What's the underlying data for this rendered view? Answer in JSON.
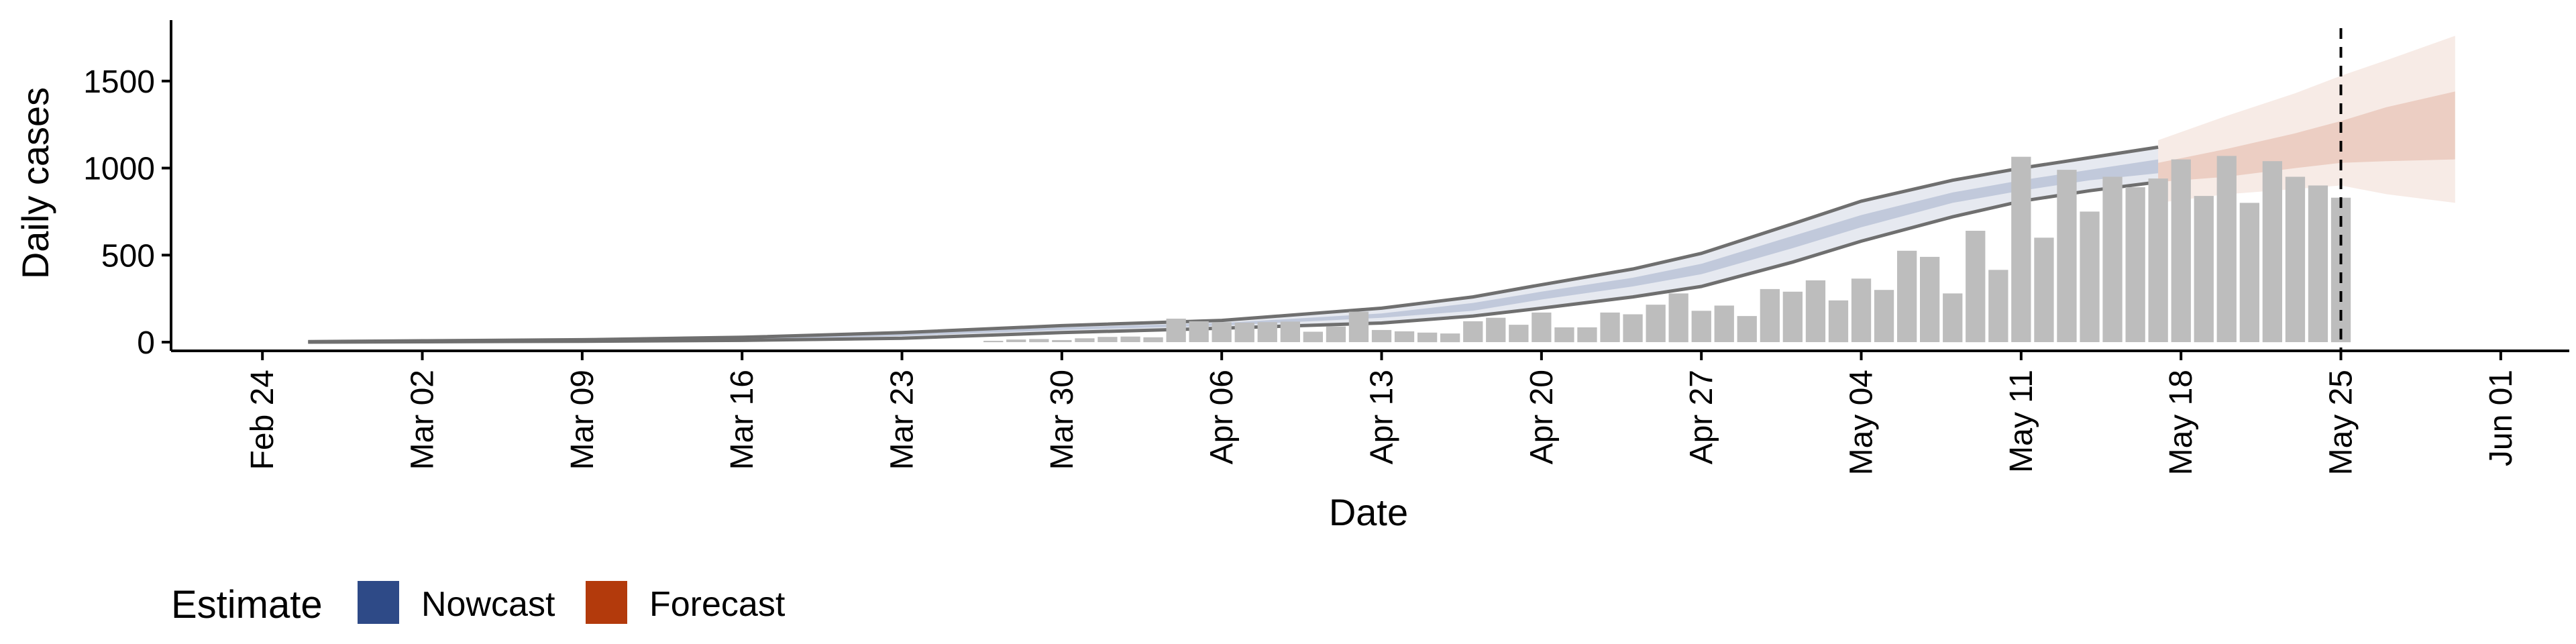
{
  "chart_data": {
    "type": "bar",
    "title": "",
    "xlabel": "Date",
    "ylabel": "Daily cases",
    "x_type": "date",
    "xlim": [
      "2020-02-20",
      "2020-06-04"
    ],
    "ylim": [
      -50,
      1850
    ],
    "y_ticks": [
      0,
      500,
      1000,
      1500
    ],
    "x_ticks": [
      {
        "date": "2020-02-24",
        "label": "Feb 24"
      },
      {
        "date": "2020-03-02",
        "label": "Mar 02"
      },
      {
        "date": "2020-03-09",
        "label": "Mar 09"
      },
      {
        "date": "2020-03-16",
        "label": "Mar 16"
      },
      {
        "date": "2020-03-23",
        "label": "Mar 23"
      },
      {
        "date": "2020-03-30",
        "label": "Mar 30"
      },
      {
        "date": "2020-04-06",
        "label": "Apr 06"
      },
      {
        "date": "2020-04-13",
        "label": "Apr 13"
      },
      {
        "date": "2020-04-20",
        "label": "Apr 20"
      },
      {
        "date": "2020-04-27",
        "label": "Apr 27"
      },
      {
        "date": "2020-05-04",
        "label": "May 04"
      },
      {
        "date": "2020-05-11",
        "label": "May 11"
      },
      {
        "date": "2020-05-18",
        "label": "May 18"
      },
      {
        "date": "2020-05-25",
        "label": "May 25"
      },
      {
        "date": "2020-06-01",
        "label": "Jun 01"
      }
    ],
    "grid": false,
    "legend": {
      "position": "bottom-left",
      "title": "Estimate",
      "entries": [
        {
          "label": "Nowcast",
          "color": "#2e4a87"
        },
        {
          "label": "Forecast",
          "color": "#b33a0c"
        }
      ]
    },
    "reference_line": {
      "date": "2020-05-25",
      "style": "dashed"
    },
    "reported_cases": {
      "color": "#bdbdbd",
      "dates": [
        "2020-03-27",
        "2020-03-28",
        "2020-03-29",
        "2020-03-30",
        "2020-03-31",
        "2020-04-01",
        "2020-04-02",
        "2020-04-03",
        "2020-04-04",
        "2020-04-05",
        "2020-04-06",
        "2020-04-07",
        "2020-04-08",
        "2020-04-09",
        "2020-04-10",
        "2020-04-11",
        "2020-04-12",
        "2020-04-13",
        "2020-04-14",
        "2020-04-15",
        "2020-04-16",
        "2020-04-17",
        "2020-04-18",
        "2020-04-19",
        "2020-04-20",
        "2020-04-21",
        "2020-04-22",
        "2020-04-23",
        "2020-04-24",
        "2020-04-25",
        "2020-04-26",
        "2020-04-27",
        "2020-04-28",
        "2020-04-29",
        "2020-04-30",
        "2020-05-01",
        "2020-05-02",
        "2020-05-03",
        "2020-05-04",
        "2020-05-05",
        "2020-05-06",
        "2020-05-07",
        "2020-05-08",
        "2020-05-09",
        "2020-05-10",
        "2020-05-11",
        "2020-05-12",
        "2020-05-13",
        "2020-05-14",
        "2020-05-15",
        "2020-05-16",
        "2020-05-17",
        "2020-05-18",
        "2020-05-19",
        "2020-05-20",
        "2020-05-21",
        "2020-05-22",
        "2020-05-23",
        "2020-05-24",
        "2020-05-25"
      ],
      "values": [
        8,
        15,
        18,
        12,
        22,
        30,
        32,
        28,
        135,
        120,
        115,
        112,
        115,
        118,
        60,
        90,
        175,
        70,
        62,
        55,
        50,
        120,
        140,
        100,
        170,
        85,
        85,
        170,
        160,
        215,
        280,
        180,
        210,
        150,
        305,
        290,
        355,
        240,
        365,
        300,
        525,
        490,
        280,
        640,
        415,
        1065,
        600,
        990,
        750,
        950,
        890,
        940,
        1050,
        840,
        1070,
        800,
        1040,
        950,
        900,
        830
      ]
    },
    "nowcast": {
      "color": "#2e4a87",
      "dates": [
        "2020-02-26",
        "2020-03-02",
        "2020-03-09",
        "2020-03-16",
        "2020-03-23",
        "2020-03-30",
        "2020-04-06",
        "2020-04-13",
        "2020-04-17",
        "2020-04-20",
        "2020-04-24",
        "2020-04-27",
        "2020-05-01",
        "2020-05-04",
        "2020-05-08",
        "2020-05-11",
        "2020-05-14",
        "2020-05-17"
      ],
      "lower_90": [
        0,
        2,
        5,
        10,
        22,
        55,
        80,
        110,
        150,
        195,
        260,
        320,
        460,
        580,
        720,
        810,
        870,
        920
      ],
      "lower_50": [
        1,
        4,
        8,
        15,
        35,
        70,
        95,
        140,
        180,
        245,
        320,
        390,
        540,
        660,
        800,
        870,
        930,
        970
      ],
      "upper_50": [
        2,
        6,
        11,
        22,
        48,
        85,
        110,
        165,
        225,
        290,
        370,
        450,
        610,
        730,
        860,
        930,
        990,
        1050
      ],
      "upper_90": [
        3,
        8,
        14,
        28,
        55,
        95,
        125,
        195,
        260,
        330,
        420,
        510,
        680,
        810,
        930,
        1000,
        1060,
        1120
      ]
    },
    "forecast": {
      "color": "#b33a0c",
      "dates": [
        "2020-05-17",
        "2020-05-20",
        "2020-05-23",
        "2020-05-25",
        "2020-05-27",
        "2020-05-30"
      ],
      "lower_90": [
        800,
        850,
        880,
        900,
        850,
        800
      ],
      "lower_50": [
        920,
        950,
        1000,
        1030,
        1040,
        1050
      ],
      "upper_50": [
        1030,
        1110,
        1200,
        1270,
        1350,
        1440
      ],
      "upper_90": [
        1160,
        1300,
        1430,
        1530,
        1620,
        1760
      ]
    }
  }
}
